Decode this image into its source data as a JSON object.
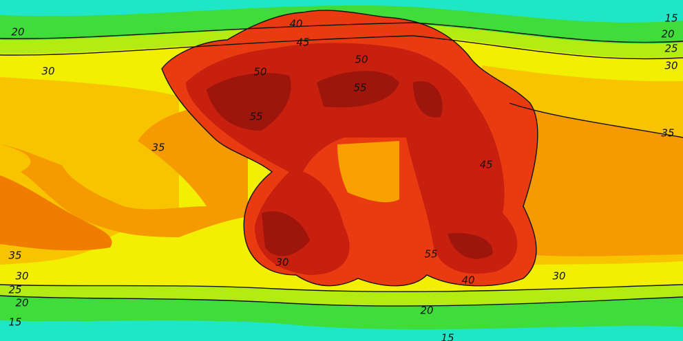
{
  "contour_labels": [
    "15",
    "20",
    "25",
    "30",
    "20",
    "30",
    "35",
    "35",
    "40",
    "45",
    "50",
    "50",
    "55",
    "55",
    "45",
    "35",
    "30",
    "25",
    "20",
    "15",
    "30",
    "30",
    "40",
    "55",
    "20",
    "15"
  ]
}
